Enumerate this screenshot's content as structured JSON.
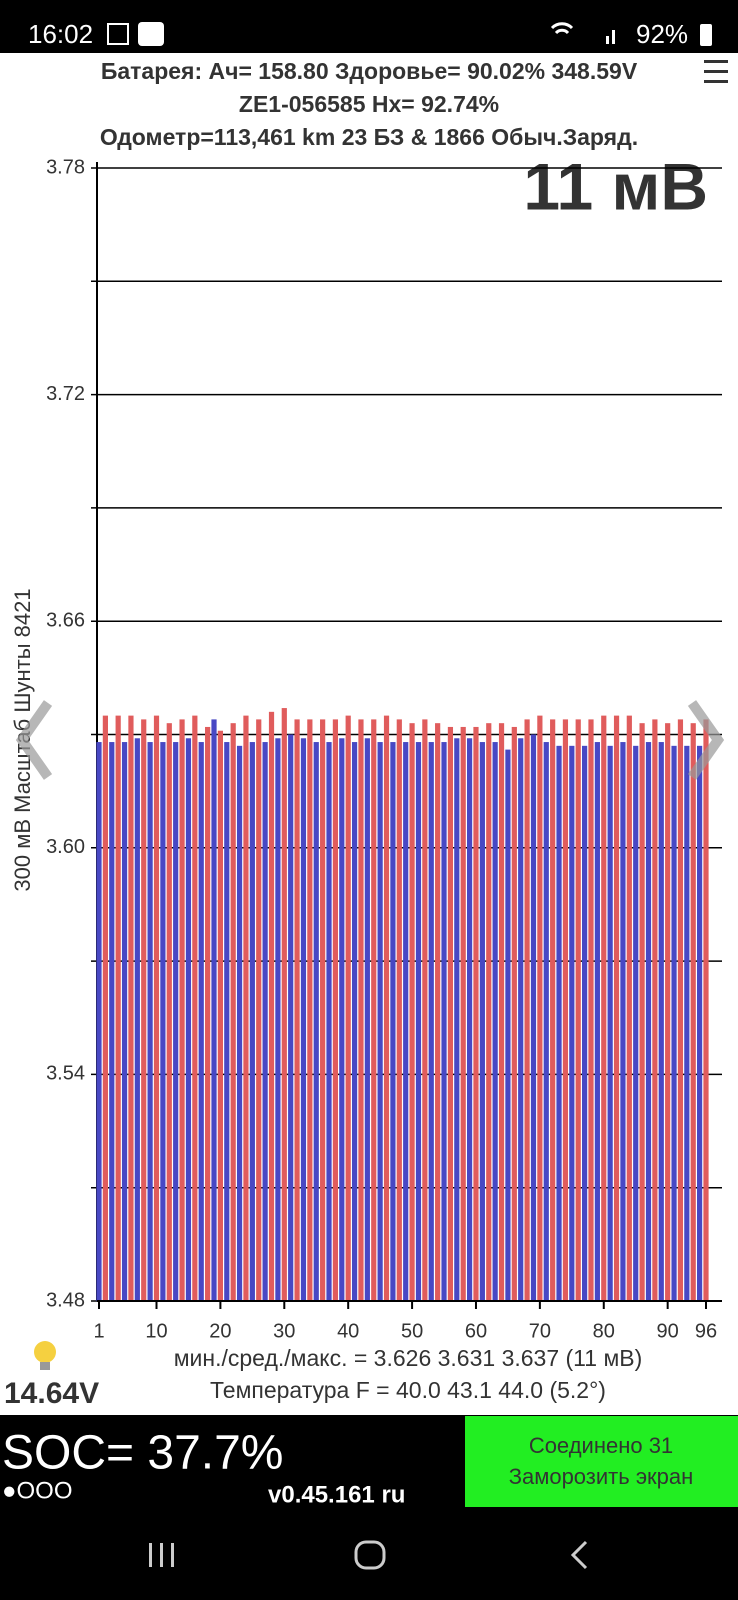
{
  "status_bar": {
    "time": "16:02",
    "battery": "92%"
  },
  "header": {
    "line1": "Батарея:  Ач= 158.80  Здоровье= 90.02%   348.59V",
    "line2": "ZE1-056585   Hx= 92.74%",
    "line3": "Одометр=113,461 km 23 БЗ & 1866 Обыч.Заряд.",
    "spread": "11 мВ"
  },
  "chart_data": {
    "type": "bar",
    "y_label": "300 мВ Масштаб  Шунты 8421",
    "x": [
      1,
      2,
      3,
      4,
      5,
      6,
      7,
      8,
      9,
      10,
      11,
      12,
      13,
      14,
      15,
      16,
      17,
      18,
      19,
      20,
      21,
      22,
      23,
      24,
      25,
      26,
      27,
      28,
      29,
      30,
      31,
      32,
      33,
      34,
      35,
      36,
      37,
      38,
      39,
      40,
      41,
      42,
      43,
      44,
      45,
      46,
      47,
      48,
      49,
      50,
      51,
      52,
      53,
      54,
      55,
      56,
      57,
      58,
      59,
      60,
      61,
      62,
      63,
      64,
      65,
      66,
      67,
      68,
      69,
      70,
      71,
      72,
      73,
      74,
      75,
      76,
      77,
      78,
      79,
      80,
      81,
      82,
      83,
      84,
      85,
      86,
      87,
      88,
      89,
      90,
      91,
      92,
      93,
      94,
      95,
      96
    ],
    "values": [
      3.628,
      3.635,
      3.628,
      3.635,
      3.628,
      3.635,
      3.629,
      3.634,
      3.628,
      3.635,
      3.628,
      3.633,
      3.628,
      3.634,
      3.629,
      3.635,
      3.628,
      3.632,
      3.634,
      3.631,
      3.628,
      3.633,
      3.627,
      3.635,
      3.628,
      3.634,
      3.628,
      3.636,
      3.629,
      3.637,
      3.63,
      3.634,
      3.629,
      3.634,
      3.628,
      3.634,
      3.628,
      3.634,
      3.629,
      3.635,
      3.628,
      3.634,
      3.629,
      3.634,
      3.628,
      3.635,
      3.628,
      3.634,
      3.628,
      3.633,
      3.628,
      3.634,
      3.628,
      3.633,
      3.628,
      3.632,
      3.629,
      3.632,
      3.629,
      3.632,
      3.628,
      3.633,
      3.628,
      3.633,
      3.626,
      3.632,
      3.629,
      3.634,
      3.63,
      3.635,
      3.628,
      3.634,
      3.627,
      3.634,
      3.627,
      3.634,
      3.627,
      3.634,
      3.628,
      3.635,
      3.627,
      3.635,
      3.628,
      3.635,
      3.627,
      3.633,
      3.628,
      3.634,
      3.628,
      3.633,
      3.627,
      3.634,
      3.627,
      3.633,
      3.627,
      3.634
    ],
    "bar_colors": [
      "#4848c4",
      "#e05c5c"
    ],
    "xlim": [
      1,
      96
    ],
    "xticks": [
      1,
      10,
      20,
      30,
      40,
      50,
      60,
      70,
      80,
      90,
      96
    ],
    "ylim": [
      3.48,
      3.78
    ],
    "yticks": [
      {
        "value": 3.48,
        "label": "3.48"
      },
      3.54,
      {
        "value": 3.6,
        "label": "3.60"
      },
      3.66,
      3.72,
      3.78
    ],
    "minor_yticks": [
      3.51,
      3.57,
      3.63,
      3.69,
      3.75
    ],
    "grid": true
  },
  "stats": {
    "line1": "мин./сред./макс. = 3.626 3.631 3.637  (11 мВ)",
    "line2": "Температура F = 40.0  43.1  44.0  (5.2°)",
    "voltage": "14.64V"
  },
  "footer": {
    "soc": "SOC= 37.7%",
    "dots": "●OOO",
    "version": "v0.45.161 ru",
    "connected": "Соединено 31",
    "freeze": "Заморозить экран"
  }
}
